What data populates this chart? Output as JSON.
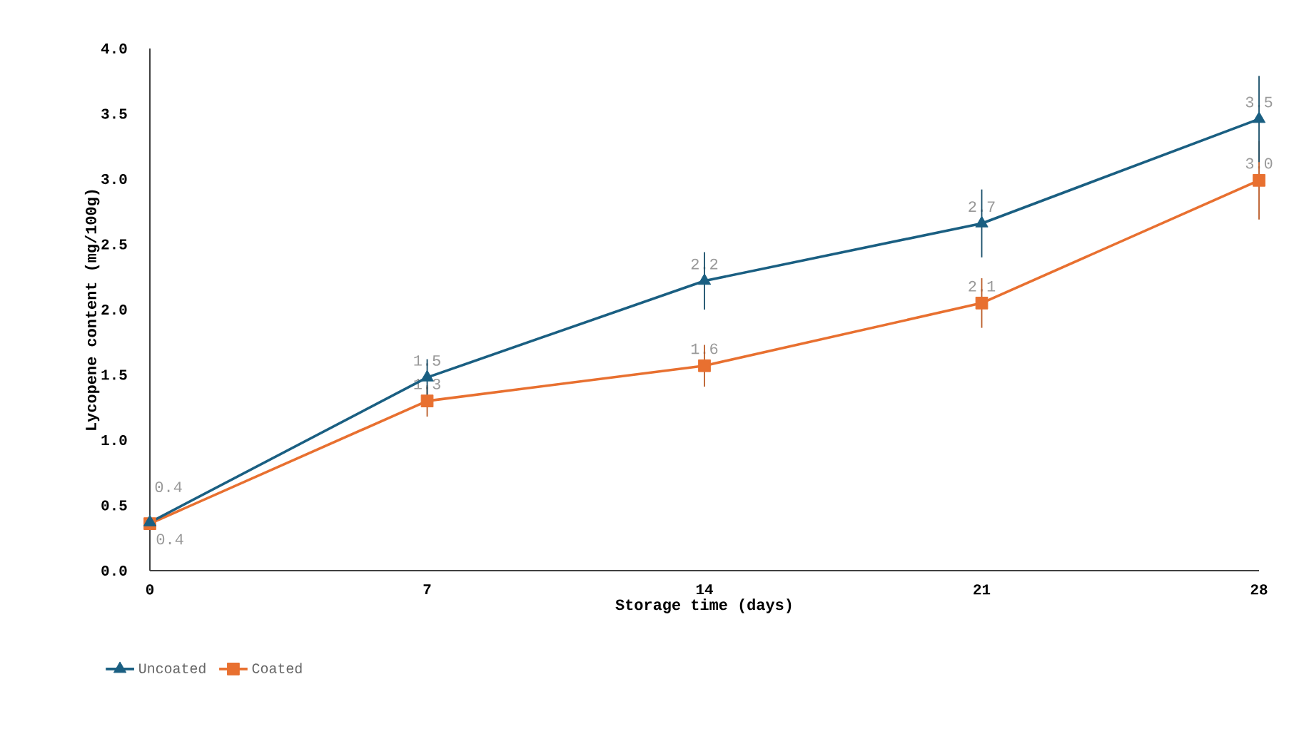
{
  "chart_data": {
    "type": "line",
    "xlabel": "Storage time (days)",
    "ylabel": "Lycopene content (mg/100g)",
    "x": [
      0,
      7,
      14,
      21,
      28
    ],
    "xlim": [
      0,
      28
    ],
    "xticks": [
      0,
      7,
      14,
      21,
      28
    ],
    "ylim": [
      0,
      4
    ],
    "yticks": [
      {
        "value": 0,
        "label": "0.0"
      },
      {
        "value": 0.5,
        "label": "0.5"
      },
      {
        "value": 1,
        "label": "1.0"
      },
      {
        "value": 1.5,
        "label": "1.5"
      },
      {
        "value": 2,
        "label": "2.0"
      },
      {
        "value": 2.5,
        "label": "2.5"
      },
      {
        "value": 3,
        "label": "3.0"
      },
      {
        "value": 3.5,
        "label": "3.5"
      },
      {
        "value": 4,
        "label": "4.0"
      }
    ],
    "grid": false,
    "legend": "bottom",
    "line_style": "solid",
    "series": [
      {
        "name": "Uncoated",
        "color": "#1a5f82",
        "marker": "triangle",
        "values": [
          0.37,
          1.48,
          2.22,
          2.66,
          3.46
        ],
        "errors": [
          null,
          0.14,
          0.22,
          0.26,
          0.33
        ],
        "value_labels": [
          "0.4",
          "1.5",
          "2.2",
          "2.7",
          "3.5"
        ]
      },
      {
        "name": "Coated",
        "color": "#e87030",
        "marker": "square",
        "values": [
          0.36,
          1.3,
          1.57,
          2.05,
          2.99
        ],
        "errors": [
          null,
          0.12,
          0.16,
          0.19,
          0.3
        ],
        "value_labels": [
          "0.4",
          "1.3",
          "1.6",
          "2.1",
          "3.0"
        ]
      }
    ]
  }
}
